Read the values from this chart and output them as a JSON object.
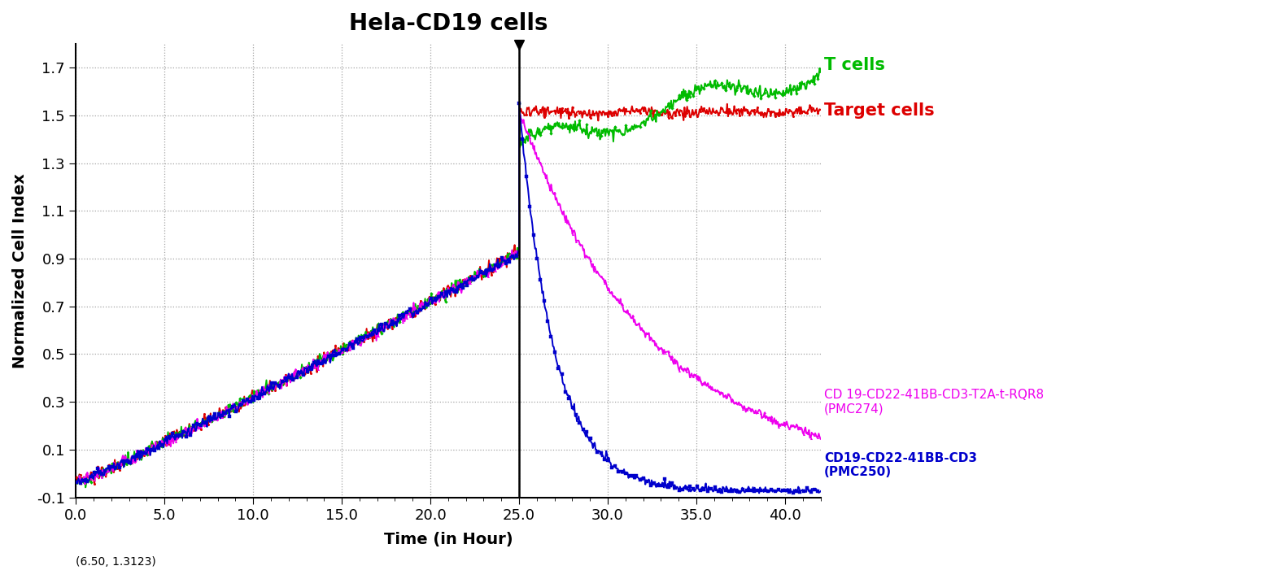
{
  "title": "Hela-CD19 cells",
  "xlabel": "Time (in Hour)",
  "ylabel": "Normalized Cell Index",
  "xlim": [
    0,
    42
  ],
  "ylim": [
    -0.1,
    1.8
  ],
  "yticks": [
    -0.1,
    0.1,
    0.3,
    0.5,
    0.7,
    0.9,
    1.1,
    1.3,
    1.5,
    1.7
  ],
  "xticks": [
    0.0,
    5.0,
    10.0,
    15.0,
    20.0,
    25.0,
    30.0,
    35.0,
    40.0
  ],
  "vline_x": 25.0,
  "annotation_text": "(6.50, 1.3123)",
  "legend_entries": [
    {
      "label": "T cells",
      "color": "#00bb00"
    },
    {
      "label": "Target cells",
      "color": "#dd0000"
    },
    {
      "label": "CD 19-CD22-41BB-CD3-T2A-t-RQR8\n(PMC274)",
      "color": "#ee00ee"
    },
    {
      "label": "CD19-CD22-41BB-CD3\n(PMC250)",
      "color": "#0000cc"
    }
  ],
  "background_color": "#ffffff",
  "grid_color": "#888888",
  "title_fontsize": 20,
  "axis_label_fontsize": 14,
  "tick_fontsize": 13,
  "legend_fontsize_large": 15,
  "legend_fontsize_small": 11
}
